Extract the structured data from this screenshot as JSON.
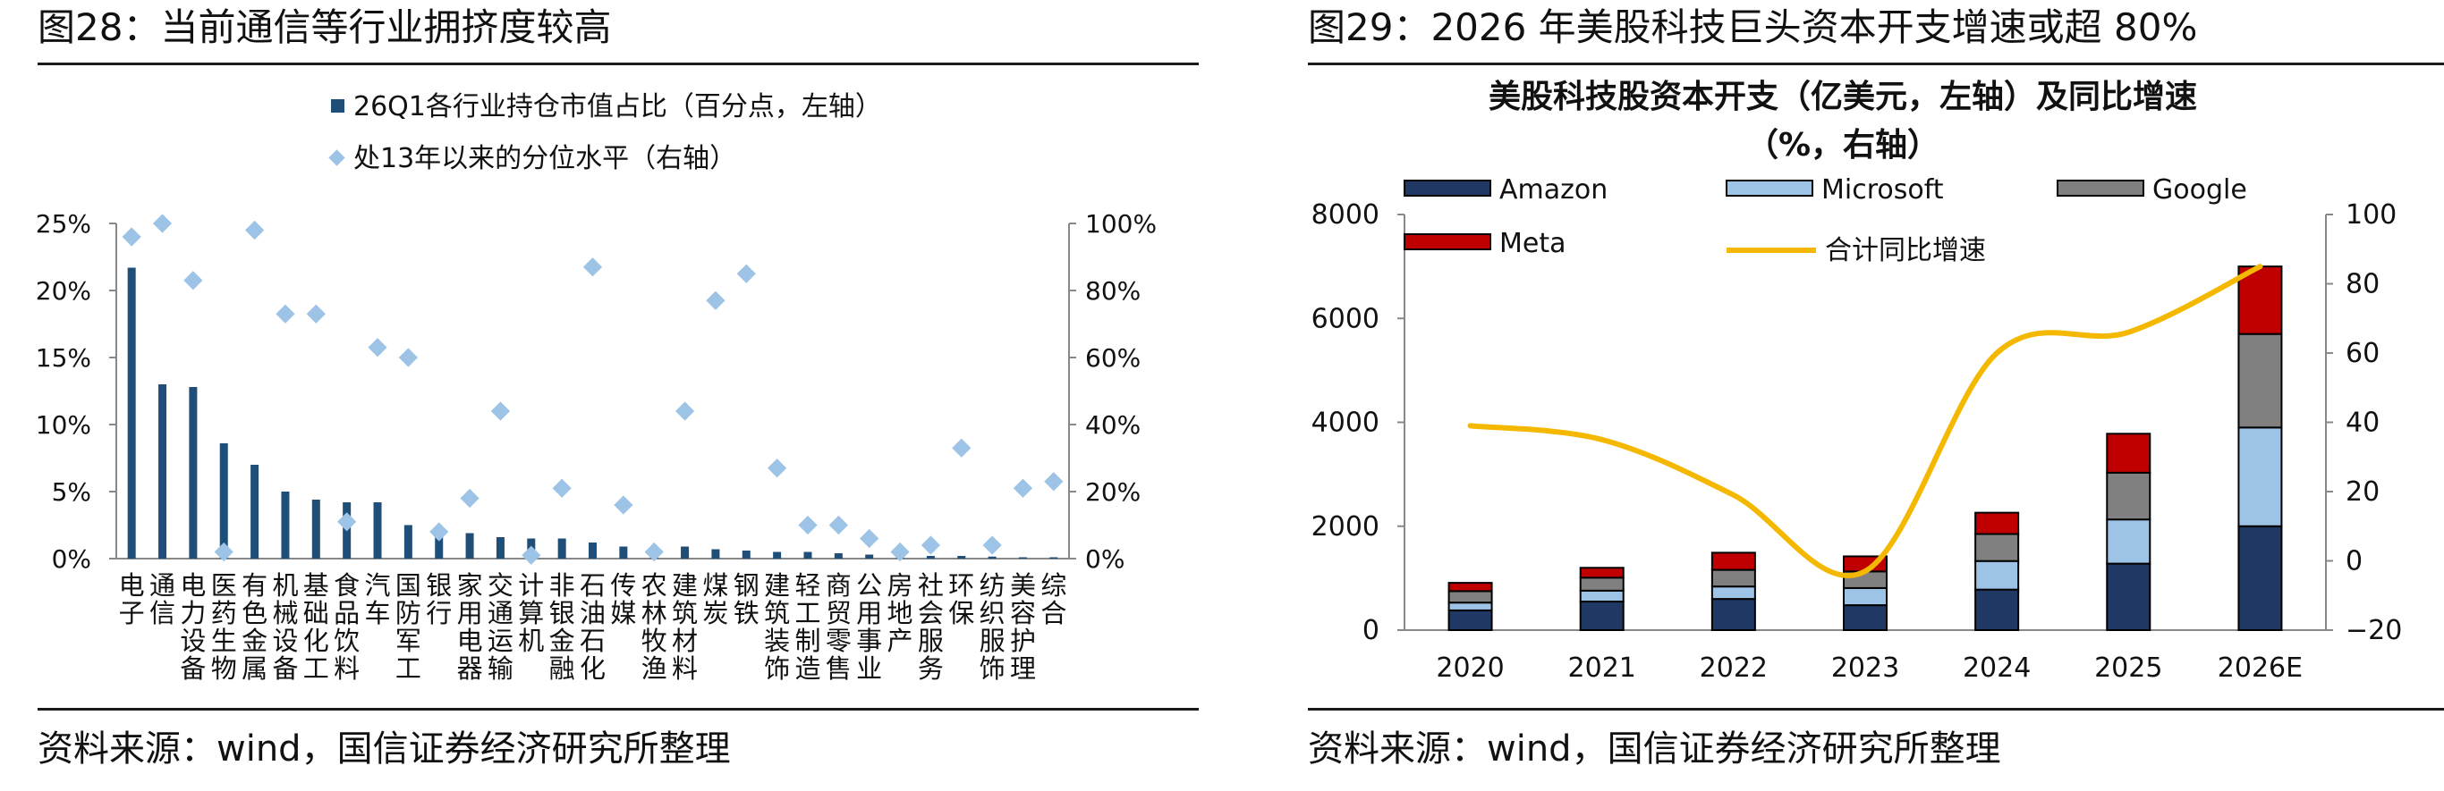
{
  "left": {
    "figure_title": "图28：当前通信等行业拥挤度较高",
    "source": "资料来源：wind，国信证券经济研究所整理",
    "chart_data": {
      "type": "bar",
      "title": "",
      "categories": [
        "电子",
        "通信",
        "电力设备",
        "医药生物",
        "有色金属",
        "机械设备",
        "基础化工",
        "食品饮料",
        "汽车",
        "国防军工",
        "银行",
        "家用电器",
        "交通运输",
        "计算机",
        "非银金融",
        "石油石化",
        "传媒",
        "农林牧渔",
        "建筑材料",
        "煤炭",
        "钢铁",
        "建筑装饰",
        "轻工制造",
        "商贸零售",
        "公用事业",
        "房地产",
        "社会服务",
        "环保",
        "纺织服饰",
        "美容护理",
        "综合"
      ],
      "series": [
        {
          "name": "26Q1各行业持仓市值占比（百分点，左轴）",
          "kind": "bar",
          "axis": "left",
          "color": "#1f4e79",
          "values": [
            21.7,
            13.0,
            12.8,
            8.6,
            7.0,
            5.0,
            4.4,
            4.2,
            4.2,
            2.5,
            2.0,
            1.9,
            1.6,
            1.5,
            1.5,
            1.2,
            0.9,
            0.9,
            0.9,
            0.7,
            0.6,
            0.5,
            0.5,
            0.4,
            0.3,
            0.2,
            0.2,
            0.2,
            0.15,
            0.1,
            0.1
          ]
        },
        {
          "name": "处13年以来的分位水平（右轴）",
          "kind": "scatter",
          "axis": "right",
          "color": "#9dc3e6",
          "values": [
            96,
            100,
            83,
            2,
            98,
            73,
            73,
            11,
            63,
            60,
            8,
            18,
            44,
            1,
            21,
            87,
            16,
            2,
            44,
            77,
            85,
            27,
            10,
            10,
            6,
            2,
            4,
            33,
            4,
            21,
            23
          ]
        }
      ],
      "left_axis": {
        "ticks": [
          "0%",
          "5%",
          "10%",
          "15%",
          "20%",
          "25%"
        ],
        "ylim": [
          0,
          25
        ]
      },
      "right_axis": {
        "ticks": [
          "0%",
          "20%",
          "40%",
          "60%",
          "80%",
          "100%"
        ],
        "ylim": [
          0,
          100
        ]
      },
      "legend_placement": "top-center"
    }
  },
  "right": {
    "figure_title": "图29：2026 年美股科技巨头资本开支增速或超 80%",
    "source": "资料来源：wind，国信证券经济研究所整理",
    "chart_data": {
      "type": "bar",
      "stacked": true,
      "title": "美股科技股资本开支（亿美元，左轴）及同比增速",
      "subtitle": "（%，右轴）",
      "categories": [
        "2020",
        "2021",
        "2022",
        "2023",
        "2024",
        "2025",
        "2026E"
      ],
      "series": [
        {
          "name": "Amazon",
          "kind": "bar",
          "axis": "left",
          "color": "#1f3864",
          "values": [
            380,
            550,
            600,
            480,
            780,
            1280,
            2000
          ]
        },
        {
          "name": "Microsoft",
          "kind": "bar",
          "axis": "left",
          "color": "#9dc3e6",
          "values": [
            150,
            210,
            240,
            330,
            550,
            850,
            1900
          ]
        },
        {
          "name": "Google",
          "kind": "bar",
          "axis": "left",
          "color": "#808080",
          "values": [
            220,
            250,
            320,
            320,
            520,
            900,
            1800
          ]
        },
        {
          "name": "Meta",
          "kind": "bar",
          "axis": "left",
          "color": "#c00000",
          "values": [
            160,
            190,
            330,
            290,
            410,
            750,
            1300
          ]
        },
        {
          "name": "合计同比增速",
          "kind": "line",
          "axis": "right",
          "color": "#f5b800",
          "values": [
            39,
            35,
            19,
            -3,
            60,
            66,
            85
          ]
        }
      ],
      "left_axis": {
        "ticks": [
          "0",
          "2000",
          "4000",
          "6000",
          "8000"
        ],
        "ylim": [
          0,
          8000
        ]
      },
      "right_axis": {
        "ticks": [
          "−20",
          "0",
          "20",
          "40",
          "60",
          "80",
          "100"
        ],
        "ylim": [
          -20,
          100
        ]
      },
      "legend_placement": "top-left"
    }
  }
}
